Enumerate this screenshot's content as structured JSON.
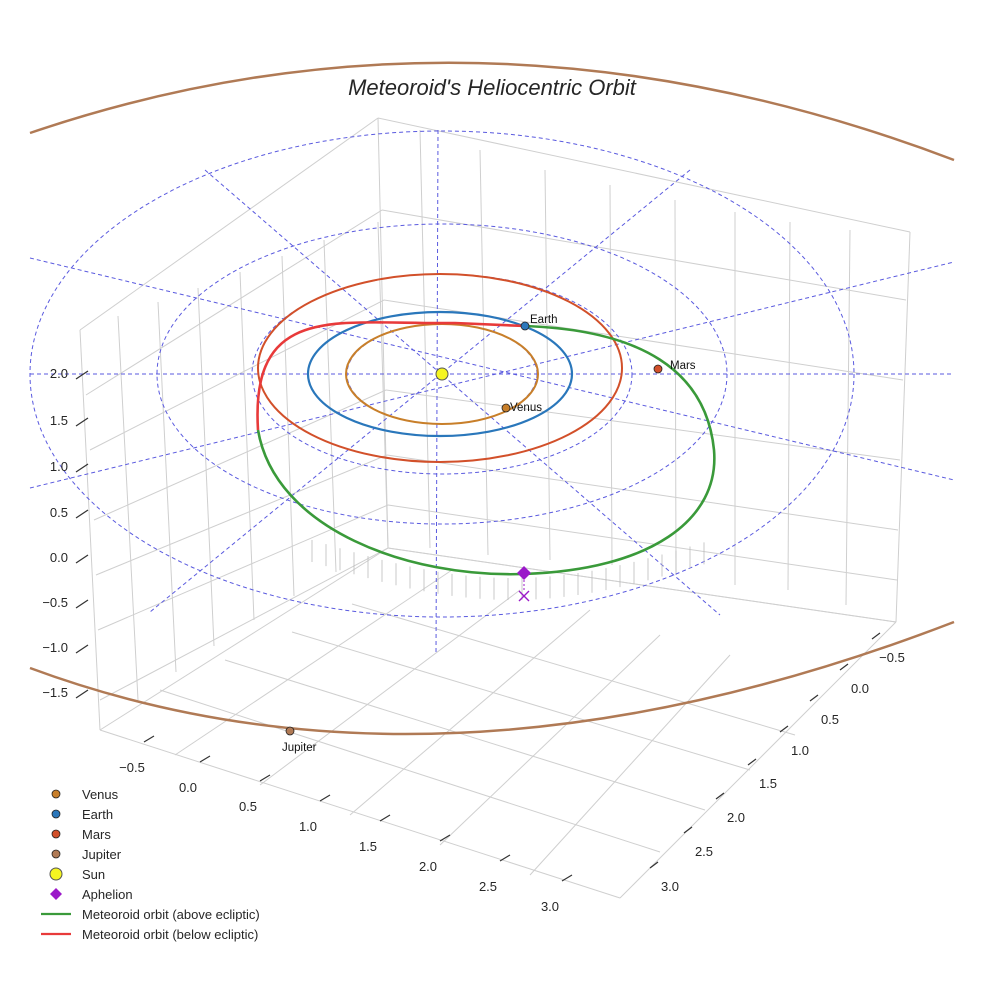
{
  "chart_data": {
    "type": "3d-orbit",
    "title": "Meteoroid's Heliocentric Orbit",
    "colors": {
      "venus": "#c87f2a",
      "earth": "#2a77bb",
      "mars": "#d2502a",
      "jupiter": "#b07a55",
      "sun": "#f5f520",
      "aphelion": "#9b19c9",
      "above": "#3a9a3a",
      "below": "#e83a3a",
      "reference_rings": "#5a5adf",
      "grid": "#cfcfcf"
    },
    "axes": {
      "x_ticks": [
        "−0.5",
        "0.0",
        "0.5",
        "1.0",
        "1.5",
        "2.0",
        "2.5",
        "3.0"
      ],
      "y_ticks": [
        "−0.5",
        "0.0",
        "0.5",
        "1.0",
        "1.5",
        "2.0",
        "2.5",
        "3.0"
      ],
      "z_ticks": [
        "−1.5",
        "−1.0",
        "−0.5",
        "0.0",
        "0.5",
        "1.0",
        "1.5",
        "2.0"
      ],
      "xlabel": "",
      "ylabel": "",
      "zlabel": ""
    },
    "planets": [
      {
        "name": "Venus",
        "label": "Venus",
        "orbit_radius_au": 0.72
      },
      {
        "name": "Earth",
        "label": "Earth",
        "orbit_radius_au": 1.0
      },
      {
        "name": "Mars",
        "label": "Mars",
        "orbit_radius_au": 1.52
      },
      {
        "name": "Jupiter",
        "label": "Jupiter",
        "orbit_radius_au": 5.2
      }
    ],
    "reference_rings_au": [
      1,
      2,
      3,
      4
    ],
    "meteoroid_orbit": {
      "above_ecliptic_label": "Meteoroid orbit (above ecliptic)",
      "below_ecliptic_label": "Meteoroid orbit (below ecliptic)",
      "aphelion_label": "Aphelion"
    },
    "legend": [
      {
        "label": "Venus",
        "marker": "circle",
        "color": "#c87f2a"
      },
      {
        "label": "Earth",
        "marker": "circle",
        "color": "#2a77bb"
      },
      {
        "label": "Mars",
        "marker": "circle",
        "color": "#d2502a"
      },
      {
        "label": "Jupiter",
        "marker": "circle",
        "color": "#b07a55"
      },
      {
        "label": "Sun",
        "marker": "sun",
        "color": "#f5f520"
      },
      {
        "label": "Aphelion",
        "marker": "diamond",
        "color": "#9b19c9"
      },
      {
        "label": "Meteoroid orbit (above ecliptic)",
        "marker": "line",
        "color": "#3a9a3a"
      },
      {
        "label": "Meteoroid orbit (below ecliptic)",
        "marker": "line",
        "color": "#e83a3a"
      }
    ],
    "legend_position": "bottom-left"
  }
}
